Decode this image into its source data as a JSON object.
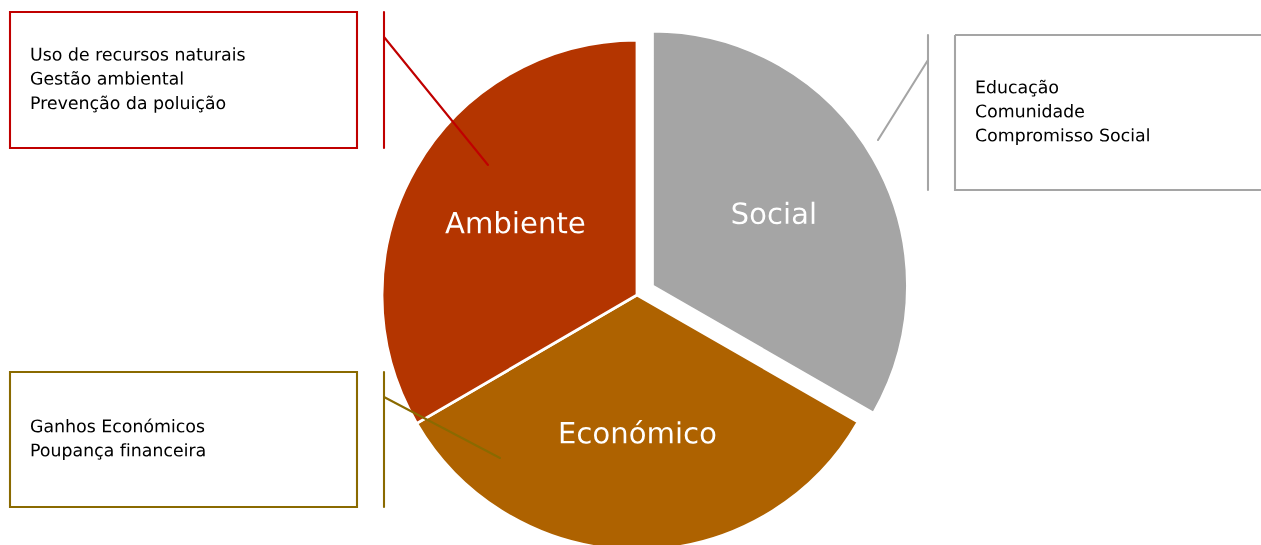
{
  "chart_data": {
    "type": "pie",
    "categories": [
      "Social",
      "Económico",
      "Ambiente"
    ],
    "values": [
      33.3,
      33.3,
      33.4
    ],
    "colors": [
      "#a5a5a5",
      "#ae6200",
      "#b43500"
    ],
    "annotations": [
      {
        "text": "Educação\nComunidade\nCompromisso Social",
        "x": "Social"
      },
      {
        "text": "Ganhos Económicos\nPoupança financeira",
        "x": "Económico"
      },
      {
        "text": "Uso de recursos naturais\nGestão ambiental\nPrevenção da poluição",
        "x": "Ambiente"
      }
    ],
    "legend": false
  }
}
